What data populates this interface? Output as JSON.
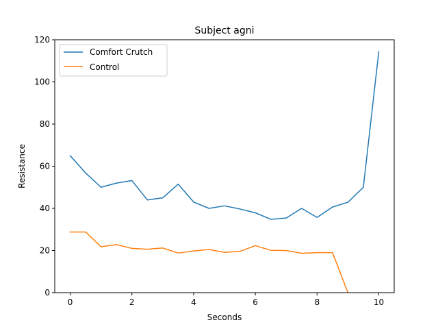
{
  "chart_data": {
    "type": "line",
    "title": "Subject agni",
    "xlabel": "Seconds",
    "ylabel": "Resistance",
    "xlim": [
      -0.5,
      10.5
    ],
    "ylim": [
      0,
      120
    ],
    "xticks": [
      0,
      2,
      4,
      6,
      8,
      10
    ],
    "yticks": [
      0,
      20,
      40,
      60,
      80,
      100,
      120
    ],
    "grid": false,
    "legend_position": "top-left",
    "series": [
      {
        "name": "Comfort Crutch",
        "color": "#1f77b4",
        "x": [
          0,
          0.5,
          1,
          1.5,
          2,
          2.5,
          3,
          3.5,
          4,
          4.5,
          5,
          5.5,
          6,
          6.5,
          7,
          7.5,
          8,
          8.5,
          9,
          9.5,
          10
        ],
        "y": [
          65,
          56.8,
          50,
          52,
          53.2,
          44,
          45,
          51.5,
          43,
          40,
          41.2,
          39.7,
          37.9,
          34.8,
          35.4,
          40,
          35.7,
          40.6,
          42.9,
          50,
          114.3
        ]
      },
      {
        "name": "Control",
        "color": "#ff7f0e",
        "x": [
          0,
          0.5,
          1,
          1.5,
          2,
          2.5,
          3,
          3.5,
          4,
          4.5,
          5,
          5.5,
          6,
          6.5,
          7,
          7.5,
          8,
          8.5,
          9
        ],
        "y": [
          28.8,
          28.8,
          21.8,
          22.8,
          21,
          20.6,
          21.2,
          18.8,
          19.8,
          20.5,
          19.1,
          19.6,
          22.3,
          20.1,
          20,
          18.7,
          19,
          19,
          0
        ]
      }
    ]
  }
}
